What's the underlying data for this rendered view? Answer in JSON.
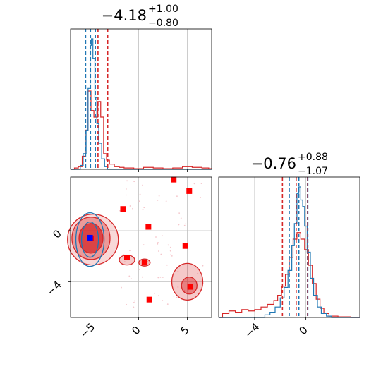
{
  "chart_data": {
    "type": "corner",
    "colors": {
      "red": "#d62728",
      "blue": "#1f77b4",
      "grid": "#bfbfbf",
      "marker_red": "#ff0000",
      "marker_blue": "#0000ff"
    },
    "params": [
      {
        "title": {
          "base": "−4.18",
          "sup": "+1.00",
          "sub": "−0.80"
        },
        "xlim": [
          -7,
          7.5
        ],
        "ticks": [
          -5,
          0,
          5
        ],
        "tick_labels": [
          "−5",
          "0",
          "5"
        ],
        "quantiles": {
          "red": [
            -4.98,
            -4.18,
            -3.18
          ],
          "blue": [
            -5.45,
            -4.95,
            -4.45
          ]
        }
      },
      {
        "title": {
          "base": "−0.76",
          "sup": "+0.88",
          "sub": "−1.07"
        },
        "xlim": [
          -6.8,
          4.2
        ],
        "ticks": [
          -4,
          0
        ],
        "tick_labels": [
          "−4",
          "0"
        ],
        "quantiles": {
          "red": [
            -1.83,
            -0.76,
            0.12
          ],
          "blue": [
            -1.3,
            -0.55,
            0.15
          ]
        }
      }
    ],
    "hist1": {
      "red": [
        [
          -7,
          0
        ],
        [
          -6.6,
          0.01
        ],
        [
          -6.2,
          0.02
        ],
        [
          -5.8,
          0.1
        ],
        [
          -5.5,
          0.3
        ],
        [
          -5.2,
          0.6
        ],
        [
          -4.9,
          0.45
        ],
        [
          -4.6,
          0.4
        ],
        [
          -4.2,
          0.52
        ],
        [
          -3.9,
          0.4
        ],
        [
          -3.6,
          0.12
        ],
        [
          -3.3,
          0.07
        ],
        [
          -3.0,
          0.04
        ],
        [
          -2.5,
          0.02
        ],
        [
          -2.0,
          0.015
        ],
        [
          -1.5,
          0.01
        ],
        [
          -0.5,
          0.005
        ],
        [
          0.5,
          0.015
        ],
        [
          1.5,
          0.01
        ],
        [
          2.5,
          0.005
        ],
        [
          3.5,
          0.01
        ],
        [
          4.5,
          0.02
        ],
        [
          5.5,
          0.015
        ],
        [
          6.5,
          0.01
        ],
        [
          7.2,
          0.005
        ],
        [
          7.5,
          0
        ]
      ],
      "blue": [
        [
          -7,
          0
        ],
        [
          -6.4,
          0
        ],
        [
          -6.0,
          0.03
        ],
        [
          -5.7,
          0.12
        ],
        [
          -5.4,
          0.3
        ],
        [
          -5.2,
          0.62
        ],
        [
          -5.0,
          0.95
        ],
        [
          -4.85,
          1.0
        ],
        [
          -4.7,
          0.85
        ],
        [
          -4.5,
          0.55
        ],
        [
          -4.3,
          0.35
        ],
        [
          -4.1,
          0.2
        ],
        [
          -3.8,
          0.08
        ],
        [
          -3.5,
          0.02
        ],
        [
          -3.2,
          0
        ],
        [
          7.5,
          0
        ]
      ]
    },
    "hist2": {
      "red": [
        [
          -6.8,
          0
        ],
        [
          -6.5,
          0.03
        ],
        [
          -6.0,
          0.05
        ],
        [
          -5.5,
          0.04
        ],
        [
          -5.0,
          0.06
        ],
        [
          -4.5,
          0.05
        ],
        [
          -4.0,
          0.06
        ],
        [
          -3.5,
          0.08
        ],
        [
          -3.0,
          0.1
        ],
        [
          -2.5,
          0.13
        ],
        [
          -2.2,
          0.17
        ],
        [
          -1.9,
          0.24
        ],
        [
          -1.6,
          0.33
        ],
        [
          -1.3,
          0.46
        ],
        [
          -1.0,
          0.6
        ],
        [
          -0.7,
          0.65
        ],
        [
          -0.4,
          0.6
        ],
        [
          -0.1,
          0.52
        ],
        [
          0.2,
          0.4
        ],
        [
          0.5,
          0.26
        ],
        [
          0.8,
          0.14
        ],
        [
          1.1,
          0.07
        ],
        [
          1.4,
          0.03
        ],
        [
          1.8,
          0.01
        ],
        [
          2.5,
          0.005
        ],
        [
          3.5,
          0
        ],
        [
          4.2,
          0
        ]
      ],
      "blue": [
        [
          -6.8,
          0
        ],
        [
          -3.6,
          0
        ],
        [
          -3.2,
          0.02
        ],
        [
          -2.8,
          0.04
        ],
        [
          -2.4,
          0.08
        ],
        [
          -2.0,
          0.15
        ],
        [
          -1.7,
          0.23
        ],
        [
          -1.4,
          0.36
        ],
        [
          -1.1,
          0.55
        ],
        [
          -0.9,
          0.72
        ],
        [
          -0.7,
          0.95
        ],
        [
          -0.55,
          1.0
        ],
        [
          -0.4,
          0.9
        ],
        [
          -0.25,
          0.85
        ],
        [
          -0.1,
          0.7
        ],
        [
          0.1,
          0.5
        ],
        [
          0.35,
          0.3
        ],
        [
          0.6,
          0.17
        ],
        [
          0.9,
          0.08
        ],
        [
          1.2,
          0.03
        ],
        [
          1.6,
          0.01
        ],
        [
          2.0,
          0
        ],
        [
          4.2,
          0
        ]
      ]
    },
    "scatter_red_squares": [
      [
        -1.6,
        1.7
      ],
      [
        1.0,
        0.3
      ],
      [
        3.6,
        4.0
      ],
      [
        5.2,
        3.1
      ],
      [
        -1.2,
        -2.1
      ],
      [
        0.6,
        -2.5
      ],
      [
        4.8,
        -1.2
      ],
      [
        5.3,
        -4.4
      ],
      [
        1.1,
        -5.4
      ],
      [
        -4.9,
        -0.6
      ]
    ],
    "scatter_blue_squares": [
      [
        -5.0,
        -0.55
      ]
    ],
    "bestfit": {
      "p1": -4.82,
      "p2": -0.55
    }
  }
}
